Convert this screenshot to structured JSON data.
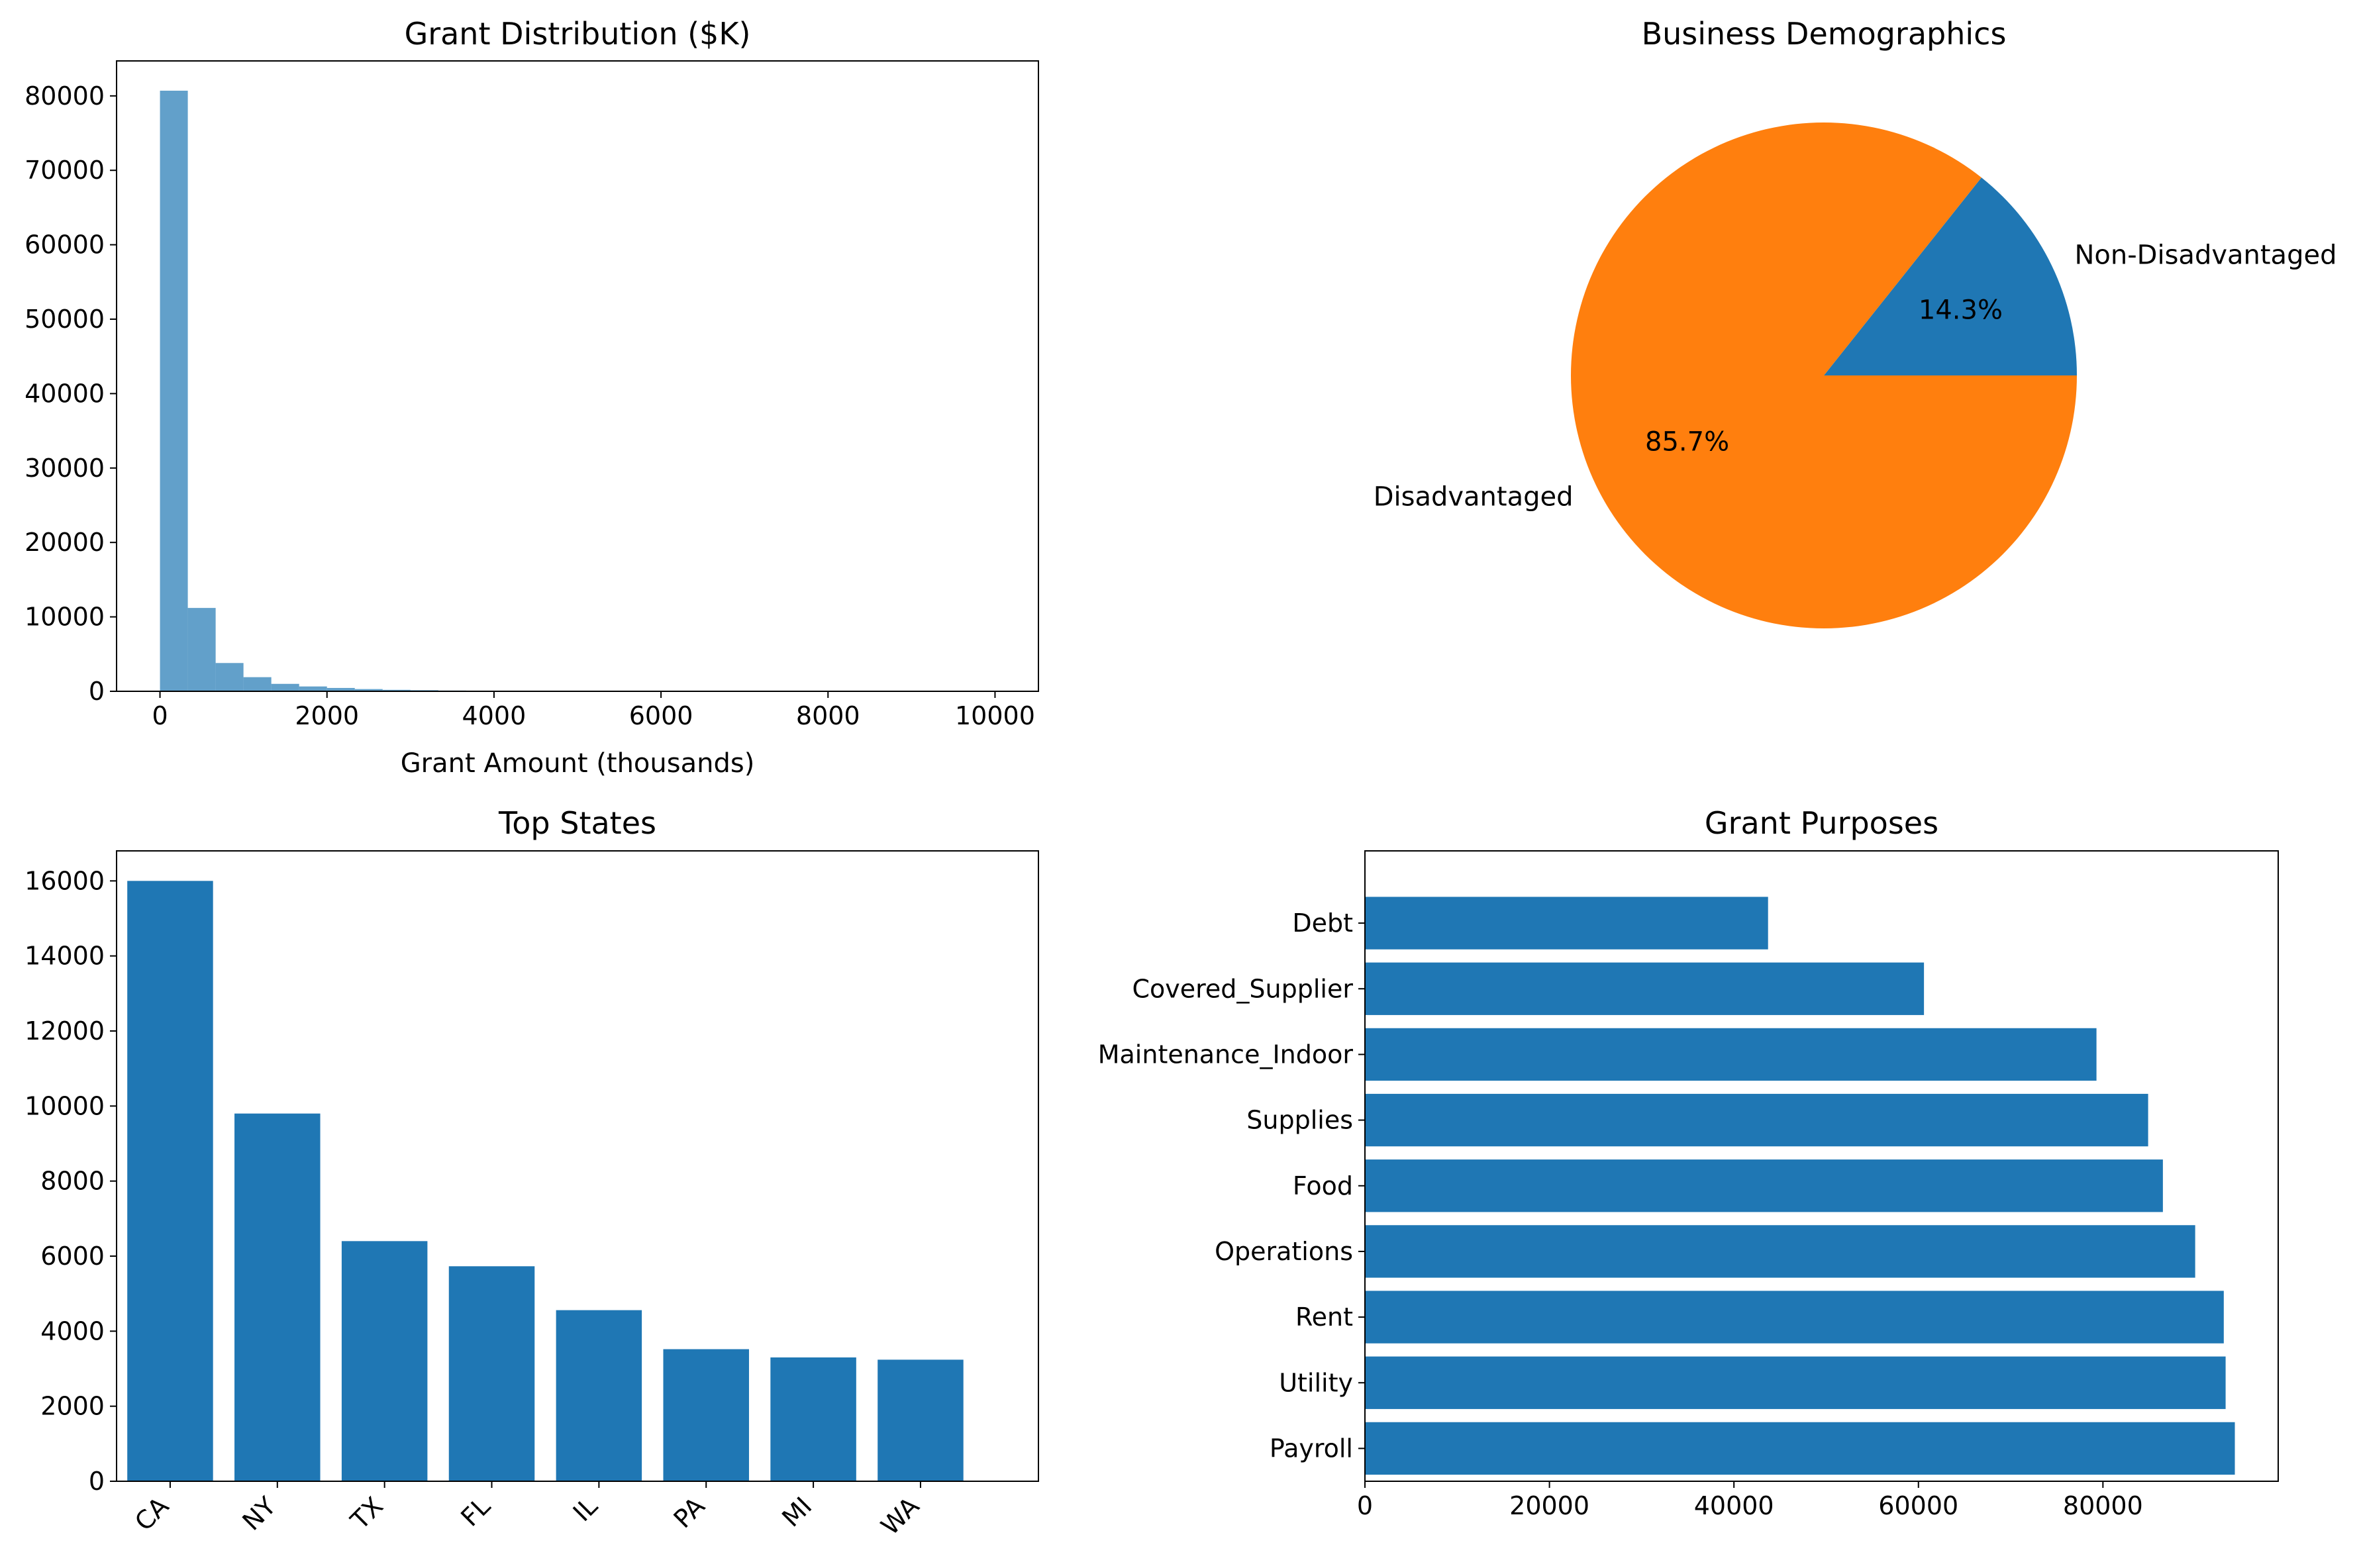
{
  "chart_data": [
    {
      "type": "bar",
      "subtype": "histogram",
      "title": "Grant Distribution ($K)",
      "xlabel": "Grant Amount (thousands)",
      "ylabel": "",
      "xlim": [
        -520,
        10520
      ],
      "ylim": [
        0,
        84700
      ],
      "xticks": [
        0,
        2000,
        4000,
        6000,
        8000,
        10000
      ],
      "yticks": [
        0,
        10000,
        20000,
        30000,
        40000,
        50000,
        60000,
        70000,
        80000
      ],
      "bin_width": 333.3,
      "bin_start": 0,
      "counts": [
        80700,
        11200,
        3800,
        1900,
        1000,
        650,
        450,
        300,
        200,
        150,
        100,
        80,
        60,
        50,
        40,
        35,
        30,
        25,
        20,
        15,
        12,
        10,
        8,
        7,
        6,
        5,
        4,
        3,
        2,
        2
      ],
      "color": "#1f77b4",
      "alpha": 0.7,
      "grid": false
    },
    {
      "type": "pie",
      "title": "Business Demographics",
      "labels": [
        "Non-Disadvantaged",
        "Disadvantaged"
      ],
      "values": [
        14.3,
        85.7
      ],
      "value_labels": [
        "14.3%",
        "85.7%"
      ],
      "colors": [
        "#1f77b4",
        "#ff7f0e"
      ]
    },
    {
      "type": "bar",
      "title": "Top States",
      "categories": [
        "CA",
        "NY",
        "TX",
        "FL",
        "IL",
        "PA",
        "MI",
        "WA"
      ],
      "values": [
        16000,
        9800,
        6400,
        5730,
        4560,
        3520,
        3300,
        3240
      ],
      "xlabel": "",
      "ylabel": "",
      "ylim": [
        0,
        16800
      ],
      "yticks": [
        0,
        2000,
        4000,
        6000,
        8000,
        10000,
        12000,
        14000,
        16000
      ],
      "color": "#1f77b4",
      "grid": false
    },
    {
      "type": "bar",
      "orientation": "horizontal",
      "title": "Grant Purposes",
      "categories": [
        "Payroll",
        "Utility",
        "Rent",
        "Operations",
        "Food",
        "Supplies",
        "Maintenance_Indoor",
        "Covered_Supplier",
        "Debt"
      ],
      "values": [
        94300,
        93300,
        93100,
        90000,
        86500,
        84900,
        79300,
        60600,
        43700
      ],
      "xlabel": "",
      "ylabel": "",
      "xlim": [
        0,
        99000
      ],
      "xticks": [
        0,
        20000,
        40000,
        60000,
        80000
      ],
      "color": "#1f77b4",
      "grid": false
    }
  ]
}
